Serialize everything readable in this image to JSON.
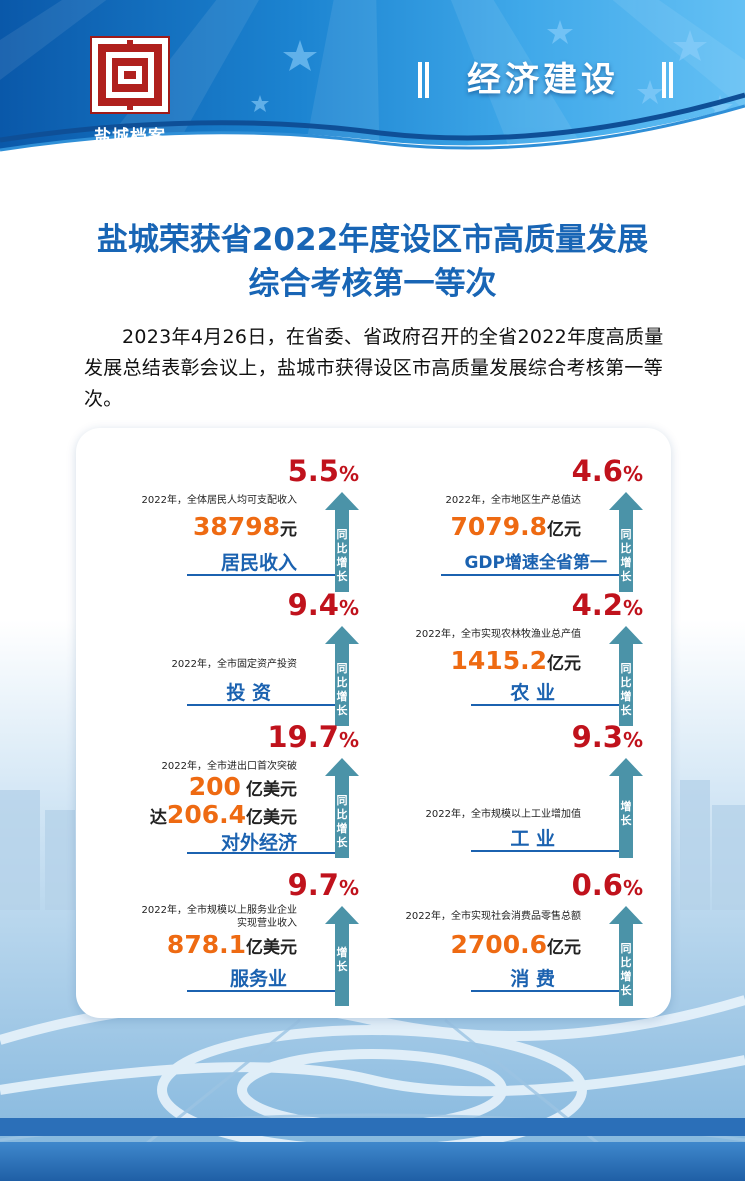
{
  "header": {
    "logo_text": "盐城档案",
    "section_title": "经济建设",
    "brand_color": "#1b6bbf"
  },
  "headline": {
    "line1": "盐城荣获省2022年度设区市高质量发展",
    "line2": "综合考核第一等次"
  },
  "intro": "2023年4月26日，在省委、省政府召开的全省2022年度高质量发展总结表彰会议上，盐城市获得设区市高质量发展综合考核第一等次。",
  "stats": [
    {
      "pct": "5.5",
      "pct_sym": "%",
      "desc": "2022年，全体居民人均可支配收入",
      "value": "38798",
      "unit": "元",
      "label": "居民收入",
      "arrow": "同比增长"
    },
    {
      "pct": "4.6",
      "pct_sym": "%",
      "desc": "2022年，全市地区生产总值达",
      "value": "7079.8",
      "unit": "亿元",
      "label": "GDP增速全省第一",
      "arrow": "同比增长"
    },
    {
      "pct": "9.4",
      "pct_sym": "%",
      "desc": "2022年，全市固定资产投资",
      "label": "投 资",
      "arrow": "同比增长"
    },
    {
      "pct": "4.2",
      "pct_sym": "%",
      "desc": "2022年，全市实现农林牧渔业总产值",
      "value": "1415.2",
      "unit": "亿元",
      "label": "农 业",
      "arrow": "同比增长"
    },
    {
      "pct": "19.7",
      "pct_sym": "%",
      "desc": "2022年，全市进出口首次突破",
      "value": "200",
      "unit": "亿美元",
      "prefix2": "达",
      "value2": "206.4",
      "unit2": "亿美元",
      "label": "对外经济",
      "arrow": "同比增长"
    },
    {
      "pct": "9.3",
      "pct_sym": "%",
      "desc": "2022年，全市规模以上工业增加值",
      "label": "工 业",
      "arrow": "增长"
    },
    {
      "pct": "9.7",
      "pct_sym": "%",
      "desc_line1": "2022年，全市规模以上服务业企业",
      "desc_line2": "实现营业收入",
      "value": "878.1",
      "unit": "亿美元",
      "label": "服务业",
      "arrow": "增长"
    },
    {
      "pct": "0.6",
      "pct_sym": "%",
      "desc": "2022年，全市实现社会消费品零售总额",
      "value": "2700.6",
      "unit": "亿元",
      "label": "消 费",
      "arrow": "同比增长"
    }
  ]
}
